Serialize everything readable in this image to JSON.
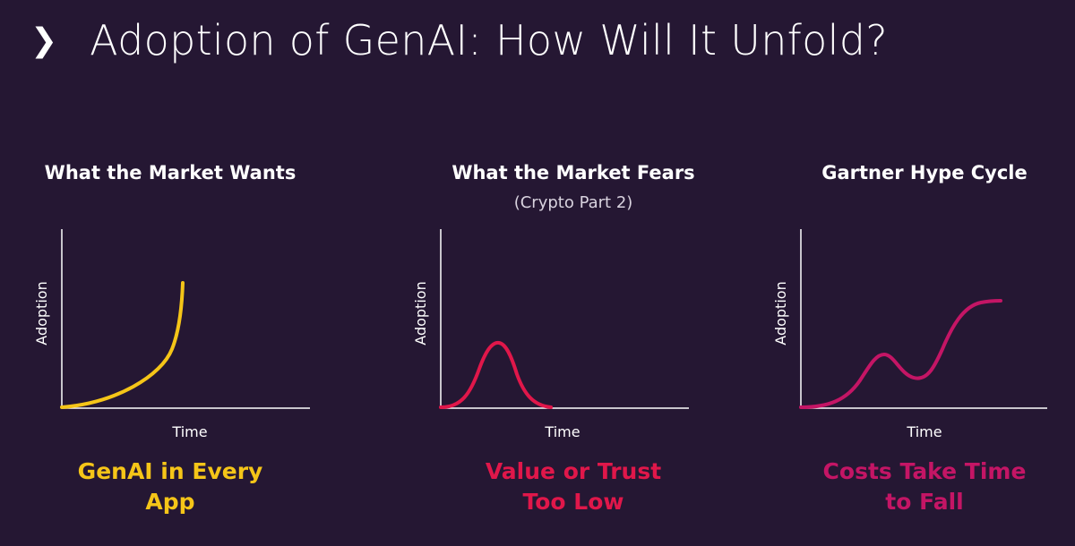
{
  "header": {
    "title": "Adoption of GenAI: How Will It Unfold?",
    "chevron_icon": "chevron-right-icon"
  },
  "panels": [
    {
      "heading": "What the Market Wants",
      "subheading": "",
      "y_label": "Adoption",
      "x_label": "Time",
      "curve": "exponential",
      "curve_color": "#f5c518",
      "caption_line1": "GenAI in Every",
      "caption_line2": "App",
      "caption_color": "#f5c518"
    },
    {
      "heading": "What the Market Fears",
      "subheading": "(Crypto Part 2)",
      "y_label": "Adoption",
      "x_label": "Time",
      "curve": "bell",
      "curve_color": "#e0174a",
      "caption_line1": "Value or Trust",
      "caption_line2": "Too Low",
      "caption_color": "#e0174a"
    },
    {
      "heading": "Gartner Hype Cycle",
      "subheading": "",
      "y_label": "Adoption",
      "x_label": "Time",
      "curve": "hype-cycle",
      "curve_color": "#c41565",
      "caption_line1": "Costs Take Time",
      "caption_line2": "to Fall",
      "caption_color": "#c41565"
    }
  ]
}
